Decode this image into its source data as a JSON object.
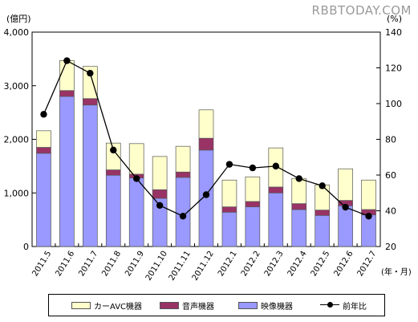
{
  "watermark": "RBBTODAY.COM",
  "units": {
    "left": "(億円)",
    "right": "(%)",
    "x": "(年・月)"
  },
  "colors": {
    "car_avc": "#ffffcc",
    "audio": "#993366",
    "video": "#9999ff",
    "yoy": "#000000"
  },
  "chart_data": {
    "type": "bar",
    "stacked": true,
    "categories": [
      "2011.5",
      "2011.6",
      "2011.7",
      "2011.8",
      "2011.9",
      "2011.10",
      "2011.11",
      "2011.12",
      "2012.1",
      "2012.2",
      "2012.3",
      "2012.4",
      "2012.5",
      "2012.6",
      "2012.7"
    ],
    "series": [
      {
        "name": "映像機器",
        "axis": "left",
        "values": [
          1740,
          2800,
          2640,
          1330,
          1280,
          900,
          1290,
          1800,
          640,
          740,
          1000,
          690,
          580,
          760,
          590
        ]
      },
      {
        "name": "音声機器",
        "axis": "left",
        "values": [
          110,
          110,
          120,
          100,
          70,
          160,
          100,
          220,
          100,
          100,
          110,
          110,
          100,
          100,
          100
        ]
      },
      {
        "name": "カーAVC機器",
        "axis": "left",
        "values": [
          310,
          560,
          600,
          500,
          570,
          620,
          480,
          530,
          500,
          460,
          730,
          470,
          470,
          590,
          550
        ]
      },
      {
        "name": "前年比",
        "type": "line",
        "axis": "right",
        "values": [
          94,
          124,
          117,
          74,
          58,
          43,
          37,
          49,
          66,
          64,
          65,
          58,
          54,
          42,
          37
        ]
      }
    ],
    "ylim_left": [
      0,
      4000
    ],
    "yticks_left": [
      "0",
      "1,000",
      "2,000",
      "3,000",
      "4,000"
    ],
    "ylim_right": [
      20,
      140
    ],
    "yticks_right": [
      "20",
      "40",
      "60",
      "80",
      "100",
      "120",
      "140"
    ],
    "grid": false,
    "legend": "bottom"
  },
  "legend": [
    {
      "key": "car_avc",
      "label": "カーAVC機器"
    },
    {
      "key": "audio",
      "label": "音声機器"
    },
    {
      "key": "video",
      "label": "映像機器"
    },
    {
      "key": "yoy",
      "label": "前年比"
    }
  ]
}
